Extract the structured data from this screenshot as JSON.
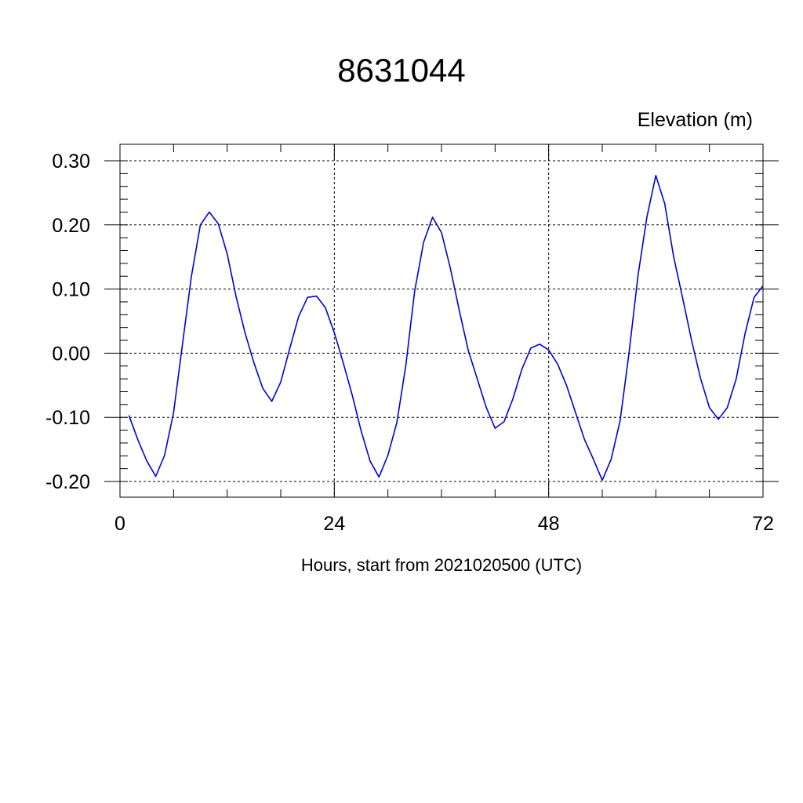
{
  "chart_data": {
    "type": "line",
    "title": "8631044",
    "ylabel": "Elevation (m)",
    "xlabel": "Hours, start from 2021020500 (UTC)",
    "xlim": [
      0,
      72
    ],
    "ylim": [
      -0.2,
      0.3
    ],
    "xticks": [
      0,
      24,
      48,
      72
    ],
    "xtick_labels": [
      "0",
      "24",
      "48",
      "72"
    ],
    "yticks": [
      -0.2,
      -0.1,
      0.0,
      0.1,
      0.2,
      0.3
    ],
    "ytick_labels": [
      "-0.20",
      "-0.10",
      "0.00",
      "0.10",
      "0.20",
      "0.30"
    ],
    "grid": true,
    "line_color": "#0000dd",
    "series": [
      {
        "x": [
          1,
          2,
          3,
          4,
          5,
          6,
          7,
          8,
          9,
          10,
          11,
          12,
          13,
          14,
          15,
          16,
          17,
          18,
          19,
          20,
          21,
          22,
          23,
          24,
          25,
          26,
          27,
          28,
          29,
          30,
          31,
          32,
          33,
          34,
          35,
          36,
          37,
          38,
          39,
          40,
          41,
          42,
          43,
          44,
          45,
          46,
          47,
          48,
          49,
          50,
          51,
          52,
          53,
          54,
          55,
          56,
          57,
          58,
          59,
          60,
          61,
          62,
          63,
          64,
          65,
          66,
          67,
          68,
          69,
          70,
          71,
          72
        ],
        "y": [
          -0.097,
          -0.135,
          -0.168,
          -0.192,
          -0.159,
          -0.093,
          0.014,
          0.12,
          0.2,
          0.22,
          0.202,
          0.155,
          0.088,
          0.032,
          -0.015,
          -0.055,
          -0.075,
          -0.045,
          0.007,
          0.057,
          0.087,
          0.089,
          0.071,
          0.032,
          -0.015,
          -0.065,
          -0.121,
          -0.168,
          -0.193,
          -0.159,
          -0.108,
          -0.02,
          0.097,
          0.173,
          0.212,
          0.188,
          0.132,
          0.066,
          0.004,
          -0.04,
          -0.084,
          -0.117,
          -0.107,
          -0.071,
          -0.025,
          0.008,
          0.014,
          0.005,
          -0.017,
          -0.05,
          -0.092,
          -0.134,
          -0.165,
          -0.198,
          -0.165,
          -0.105,
          0.001,
          0.121,
          0.212,
          0.277,
          0.233,
          0.15,
          0.086,
          0.02,
          -0.039,
          -0.085,
          -0.103,
          -0.085,
          -0.04,
          0.031,
          0.087,
          0.105
        ]
      }
    ]
  }
}
